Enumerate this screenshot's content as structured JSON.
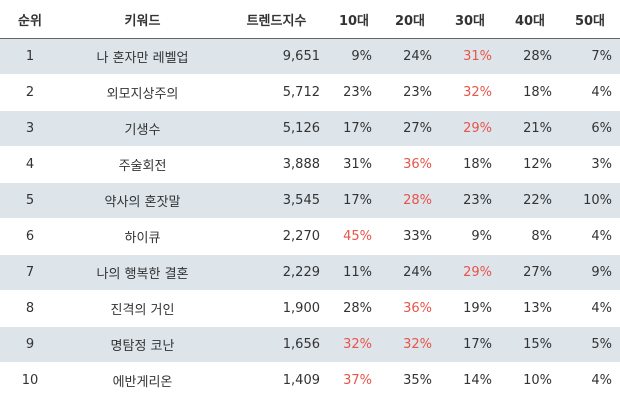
{
  "table": {
    "header": [
      "순위",
      "키워드",
      "트렌드지수",
      "10대",
      "20대",
      "30대",
      "40대",
      "50대"
    ],
    "rows": [
      [
        "1",
        "나 혼자만 레벨업",
        "9,651",
        "9%",
        "24%",
        "31%",
        "28%",
        "7%"
      ],
      [
        "2",
        "외모지상주의",
        "5,712",
        "23%",
        "23%",
        "32%",
        "18%",
        "4%"
      ],
      [
        "3",
        "기생수",
        "5,126",
        "17%",
        "27%",
        "29%",
        "21%",
        "6%"
      ],
      [
        "4",
        "주술회전",
        "3,888",
        "31%",
        "36%",
        "18%",
        "12%",
        "3%"
      ],
      [
        "5",
        "약사의 혼잣말",
        "3,545",
        "17%",
        "28%",
        "23%",
        "22%",
        "10%"
      ],
      [
        "6",
        "하이큐",
        "2,270",
        "45%",
        "33%",
        "9%",
        "8%",
        "4%"
      ],
      [
        "7",
        "나의 행복한 결혼",
        "2,229",
        "11%",
        "24%",
        "29%",
        "27%",
        "9%"
      ],
      [
        "8",
        "진격의 거인",
        "1,900",
        "28%",
        "36%",
        "19%",
        "13%",
        "4%"
      ],
      [
        "9",
        "명탐정 코난",
        "1,656",
        "32%",
        "32%",
        "17%",
        "15%",
        "5%"
      ],
      [
        "10",
        "에반게리온",
        "1,409",
        "37%",
        "35%",
        "14%",
        "10%",
        "4%"
      ]
    ],
    "highlight_color": "#e8544a",
    "highlighted": [
      [
        5
      ],
      [
        5
      ],
      [
        5
      ],
      [
        4
      ],
      [
        4
      ],
      [
        3
      ],
      [
        5
      ],
      [
        4
      ],
      [
        3,
        4
      ],
      [
        3
      ]
    ]
  }
}
